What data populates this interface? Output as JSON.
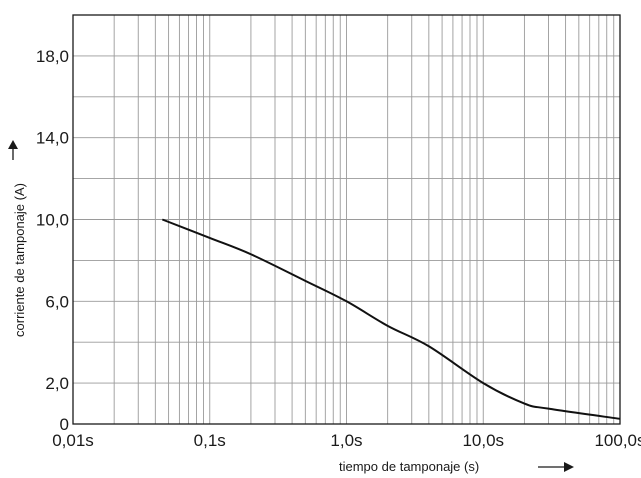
{
  "chart_data": {
    "type": "line",
    "xlabel": "tiempo de tamponaje (s)",
    "ylabel": "corriente de tamponaje (A)",
    "x_scale": "log",
    "xlim": [
      0.01,
      100
    ],
    "ylim": [
      0,
      20
    ],
    "grid": true,
    "x_ticks": [
      {
        "value": 0.01,
        "label": "0,01s"
      },
      {
        "value": 0.1,
        "label": "0,1s"
      },
      {
        "value": 1,
        "label": "1,0s"
      },
      {
        "value": 10,
        "label": "10,0s"
      },
      {
        "value": 100,
        "label": "100,0s"
      }
    ],
    "y_ticks": [
      {
        "value": 0,
        "label": "0"
      },
      {
        "value": 2,
        "label": "2,0"
      },
      {
        "value": 6,
        "label": "6,0"
      },
      {
        "value": 10,
        "label": "10,0"
      },
      {
        "value": 14,
        "label": "14,0"
      },
      {
        "value": 18,
        "label": "18,0"
      }
    ],
    "series": [
      {
        "x": [
          0.045,
          0.1,
          0.2,
          0.5,
          1.0,
          2.0,
          4.0,
          10.0,
          20.0,
          30.0,
          100.0
        ],
        "y": [
          10.0,
          9.1,
          8.3,
          7.0,
          6.0,
          4.8,
          3.8,
          2.0,
          1.0,
          0.75,
          0.25
        ],
        "color": "#111111"
      }
    ]
  }
}
